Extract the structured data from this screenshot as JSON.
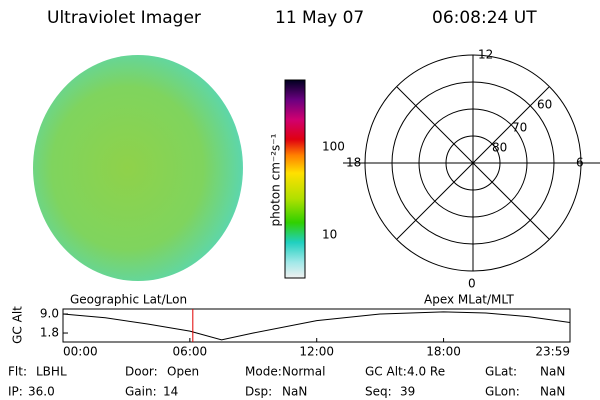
{
  "header": {
    "instrument": "Ultraviolet Imager",
    "date": "11 May 07",
    "time": "06:08:24 UT"
  },
  "colorbar": {
    "label": "photon cm⁻²s⁻¹",
    "ticks": [
      "100",
      "10"
    ]
  },
  "polar": {
    "mlt_labels": [
      "12",
      "18",
      "6",
      "0"
    ],
    "lat_labels": [
      "60",
      "70",
      "80"
    ]
  },
  "left_label": "Geographic Lat/Lon",
  "right_label": "Apex MLat/MLT",
  "altitude_plot": {
    "ylabel": "GC Alt",
    "x": [
      0,
      2,
      4,
      6,
      7.5,
      9,
      12,
      15,
      18,
      20,
      22,
      23.98
    ],
    "values": [
      9.0,
      7.6,
      5.2,
      2.5,
      -0.8,
      1.8,
      6.5,
      9.0,
      9.8,
      9.4,
      8.0,
      5.8
    ],
    "marker_x": 6.14,
    "xlim": [
      0,
      23.98
    ],
    "ylim": [
      -1.6,
      10.9
    ],
    "yticks": [
      {
        "value": 9,
        "label": "9.0"
      },
      1.8
    ],
    "xticks": [
      {
        "value": 0,
        "label": "00:00"
      },
      {
        "value": 6,
        "label": "06:00"
      },
      {
        "value": 12,
        "label": "12:00"
      },
      {
        "value": 18,
        "label": "18:00"
      },
      {
        "value": 23.98,
        "label": "23:59"
      }
    ]
  },
  "status": [
    [
      {
        "label": "Flt:",
        "value": "LBHL"
      },
      {
        "label": "Door:",
        "value": "Open"
      },
      {
        "label": "Mode:",
        "value": "Normal"
      },
      {
        "label": "GC Alt:",
        "value": "4.0 Re"
      },
      {
        "label": "GLat:",
        "value": "NaN"
      }
    ],
    [
      {
        "label": "IP:",
        "value": "36.0"
      },
      {
        "label": "Gain:",
        "value": "14"
      },
      {
        "label": "Dsp:",
        "value": "NaN"
      },
      {
        "label": "Seq:",
        "value": "39"
      },
      {
        "label": "GLon:",
        "value": "NaN"
      }
    ]
  ]
}
